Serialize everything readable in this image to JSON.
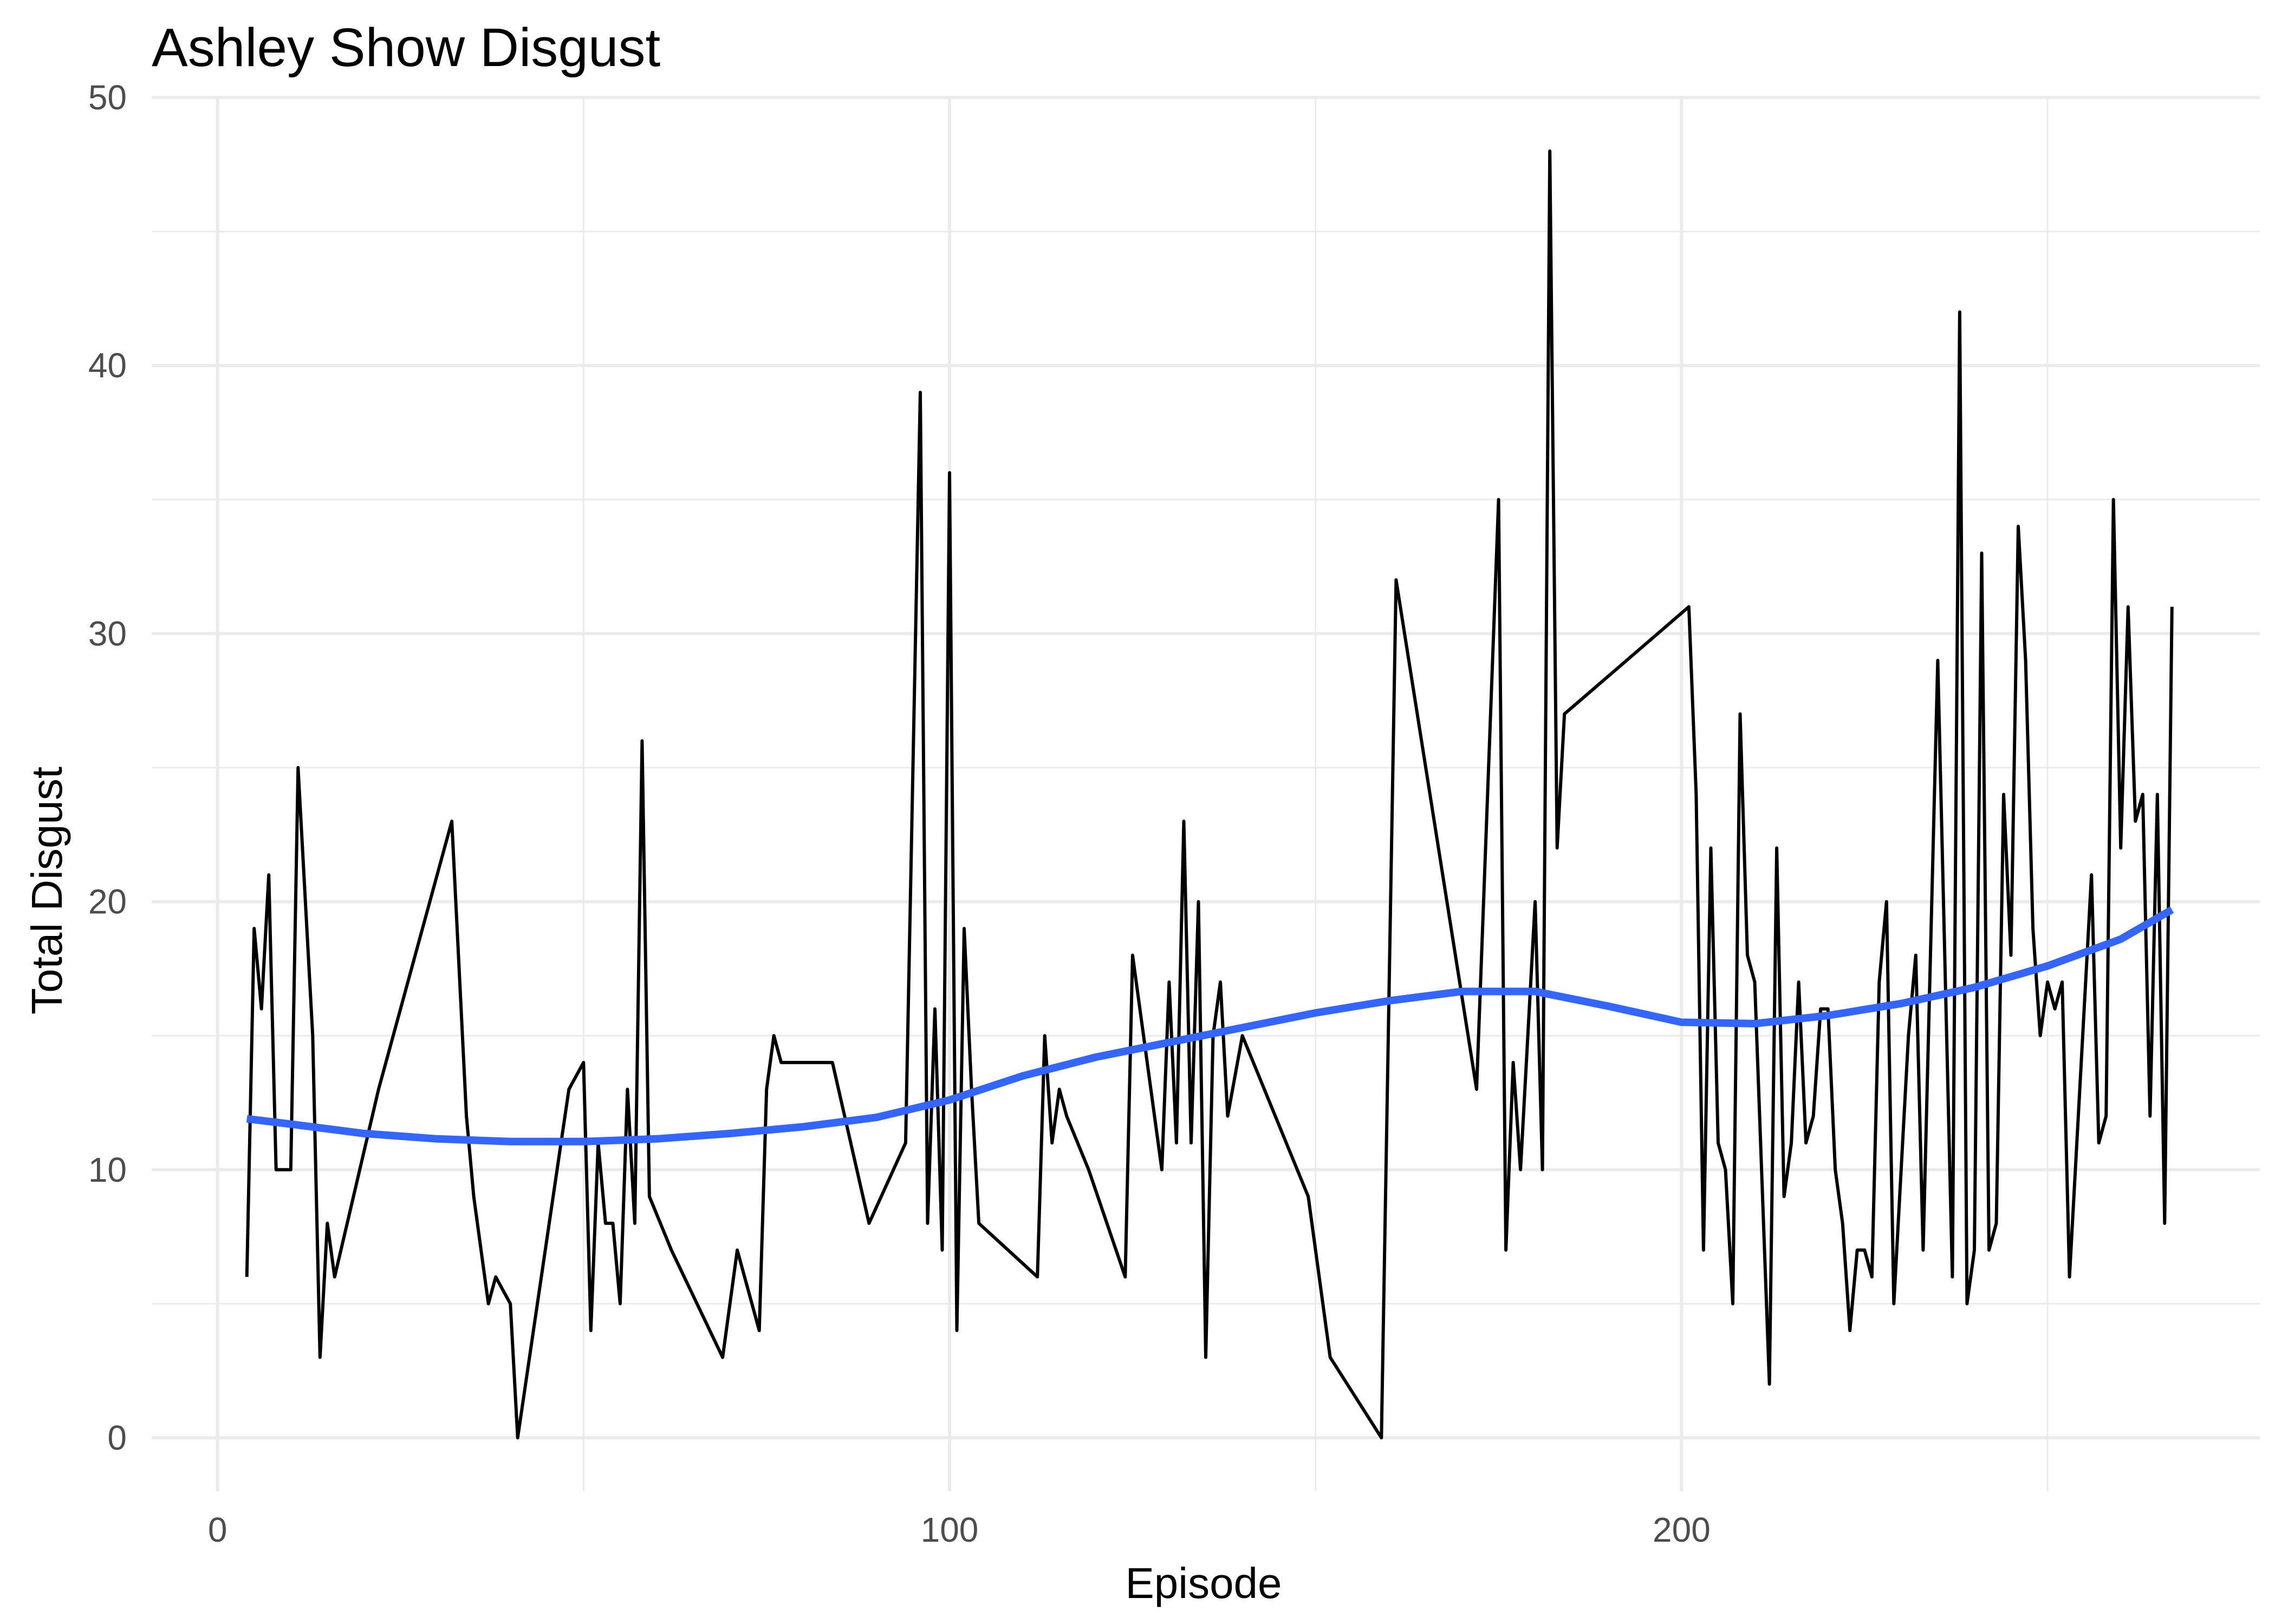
{
  "chart_data": {
    "type": "line",
    "title": "Ashley Show Disgust",
    "xlabel": "Episode",
    "ylabel": "Total Disgust",
    "xlim": [
      -9,
      279
    ],
    "ylim": [
      -2,
      50
    ],
    "x_ticks": [
      0,
      100,
      200
    ],
    "x_tick_labels": [
      "0",
      "100",
      "200"
    ],
    "x_minor_ticks": [
      50,
      150,
      250
    ],
    "y_ticks": [
      0,
      10,
      20,
      30,
      40,
      50
    ],
    "y_tick_labels": [
      "0",
      "10",
      "20",
      "30",
      "40",
      "50"
    ],
    "y_minor_ticks": [
      5,
      15,
      25,
      35,
      45
    ],
    "grid": true,
    "series": [
      {
        "type": "line",
        "color": "#000000",
        "points": [
          [
            4,
            6
          ],
          [
            5,
            19
          ],
          [
            6,
            16
          ],
          [
            7,
            21
          ],
          [
            8,
            10
          ],
          [
            10,
            10
          ],
          [
            11,
            25
          ],
          [
            13,
            15
          ],
          [
            14,
            3
          ],
          [
            15,
            8
          ],
          [
            16,
            6
          ],
          [
            22,
            13
          ],
          [
            32,
            23
          ],
          [
            34,
            12
          ],
          [
            35,
            9
          ],
          [
            37,
            5
          ],
          [
            38,
            6
          ],
          [
            40,
            5
          ],
          [
            41,
            0
          ],
          [
            48,
            13
          ],
          [
            50,
            14
          ],
          [
            51,
            4
          ],
          [
            52,
            11
          ],
          [
            53,
            8
          ],
          [
            54,
            8
          ],
          [
            55,
            5
          ],
          [
            56,
            13
          ],
          [
            57,
            8
          ],
          [
            58,
            26
          ],
          [
            59,
            9
          ],
          [
            62,
            7
          ],
          [
            69,
            3
          ],
          [
            71,
            7
          ],
          [
            74,
            4
          ],
          [
            75,
            13
          ],
          [
            76,
            15
          ],
          [
            77,
            14
          ],
          [
            84,
            14
          ],
          [
            89,
            8
          ],
          [
            94,
            11
          ],
          [
            96,
            39
          ],
          [
            97,
            8
          ],
          [
            98,
            16
          ],
          [
            99,
            7
          ],
          [
            100,
            36
          ],
          [
            101,
            4
          ],
          [
            102,
            19
          ],
          [
            103,
            13
          ],
          [
            104,
            8
          ],
          [
            112,
            6
          ],
          [
            113,
            15
          ],
          [
            114,
            11
          ],
          [
            115,
            13
          ],
          [
            116,
            12
          ],
          [
            119,
            10
          ],
          [
            124,
            6
          ],
          [
            125,
            18
          ],
          [
            129,
            10
          ],
          [
            130,
            17
          ],
          [
            131,
            11
          ],
          [
            132,
            23
          ],
          [
            133,
            11
          ],
          [
            134,
            20
          ],
          [
            135,
            3
          ],
          [
            136,
            15
          ],
          [
            137,
            17
          ],
          [
            138,
            12
          ],
          [
            140,
            15
          ],
          [
            149,
            9
          ],
          [
            152,
            3
          ],
          [
            159,
            0
          ],
          [
            161,
            32
          ],
          [
            172,
            13
          ],
          [
            175,
            35
          ],
          [
            176,
            7
          ],
          [
            177,
            14
          ],
          [
            178,
            10
          ],
          [
            180,
            20
          ],
          [
            181,
            10
          ],
          [
            182,
            48
          ],
          [
            183,
            22
          ],
          [
            184,
            27
          ],
          [
            201,
            31
          ],
          [
            202,
            24
          ],
          [
            203,
            7
          ],
          [
            204,
            22
          ],
          [
            205,
            11
          ],
          [
            206,
            10
          ],
          [
            207,
            5
          ],
          [
            208,
            27
          ],
          [
            209,
            18
          ],
          [
            210,
            17
          ],
          [
            212,
            2
          ],
          [
            213,
            22
          ],
          [
            214,
            9
          ],
          [
            215,
            11
          ],
          [
            216,
            17
          ],
          [
            217,
            11
          ],
          [
            218,
            12
          ],
          [
            219,
            16
          ],
          [
            220,
            16
          ],
          [
            221,
            10
          ],
          [
            222,
            8
          ],
          [
            223,
            4
          ],
          [
            224,
            7
          ],
          [
            225,
            7
          ],
          [
            226,
            6
          ],
          [
            227,
            17
          ],
          [
            228,
            20
          ],
          [
            229,
            5
          ],
          [
            231,
            15
          ],
          [
            232,
            18
          ],
          [
            233,
            7
          ],
          [
            235,
            29
          ],
          [
            237,
            6
          ],
          [
            238,
            42
          ],
          [
            239,
            5
          ],
          [
            240,
            7
          ],
          [
            241,
            33
          ],
          [
            242,
            7
          ],
          [
            243,
            8
          ],
          [
            244,
            24
          ],
          [
            245,
            18
          ],
          [
            246,
            34
          ],
          [
            247,
            29
          ],
          [
            248,
            19
          ],
          [
            249,
            15
          ],
          [
            250,
            17
          ],
          [
            251,
            16
          ],
          [
            252,
            17
          ],
          [
            253,
            6
          ],
          [
            255,
            16
          ],
          [
            256,
            21
          ],
          [
            257,
            11
          ],
          [
            258,
            12
          ],
          [
            259,
            35
          ],
          [
            260,
            22
          ],
          [
            261,
            31
          ],
          [
            262,
            23
          ],
          [
            263,
            24
          ],
          [
            264,
            12
          ],
          [
            265,
            24
          ],
          [
            266,
            8
          ],
          [
            267,
            31
          ]
        ]
      },
      {
        "type": "smooth",
        "color": "#3366ff",
        "points": [
          [
            4,
            11.9
          ],
          [
            10,
            11.7
          ],
          [
            20,
            11.35
          ],
          [
            30,
            11.15
          ],
          [
            40,
            11.05
          ],
          [
            50,
            11.05
          ],
          [
            60,
            11.15
          ],
          [
            70,
            11.35
          ],
          [
            80,
            11.6
          ],
          [
            90,
            11.95
          ],
          [
            100,
            12.6
          ],
          [
            110,
            13.5
          ],
          [
            120,
            14.2
          ],
          [
            130,
            14.75
          ],
          [
            140,
            15.3
          ],
          [
            150,
            15.85
          ],
          [
            160,
            16.3
          ],
          [
            170,
            16.65
          ],
          [
            180,
            16.65
          ],
          [
            190,
            16.1
          ],
          [
            200,
            15.5
          ],
          [
            210,
            15.45
          ],
          [
            220,
            15.75
          ],
          [
            230,
            16.2
          ],
          [
            240,
            16.8
          ],
          [
            250,
            17.6
          ],
          [
            260,
            18.6
          ],
          [
            267,
            19.7
          ]
        ]
      }
    ]
  }
}
